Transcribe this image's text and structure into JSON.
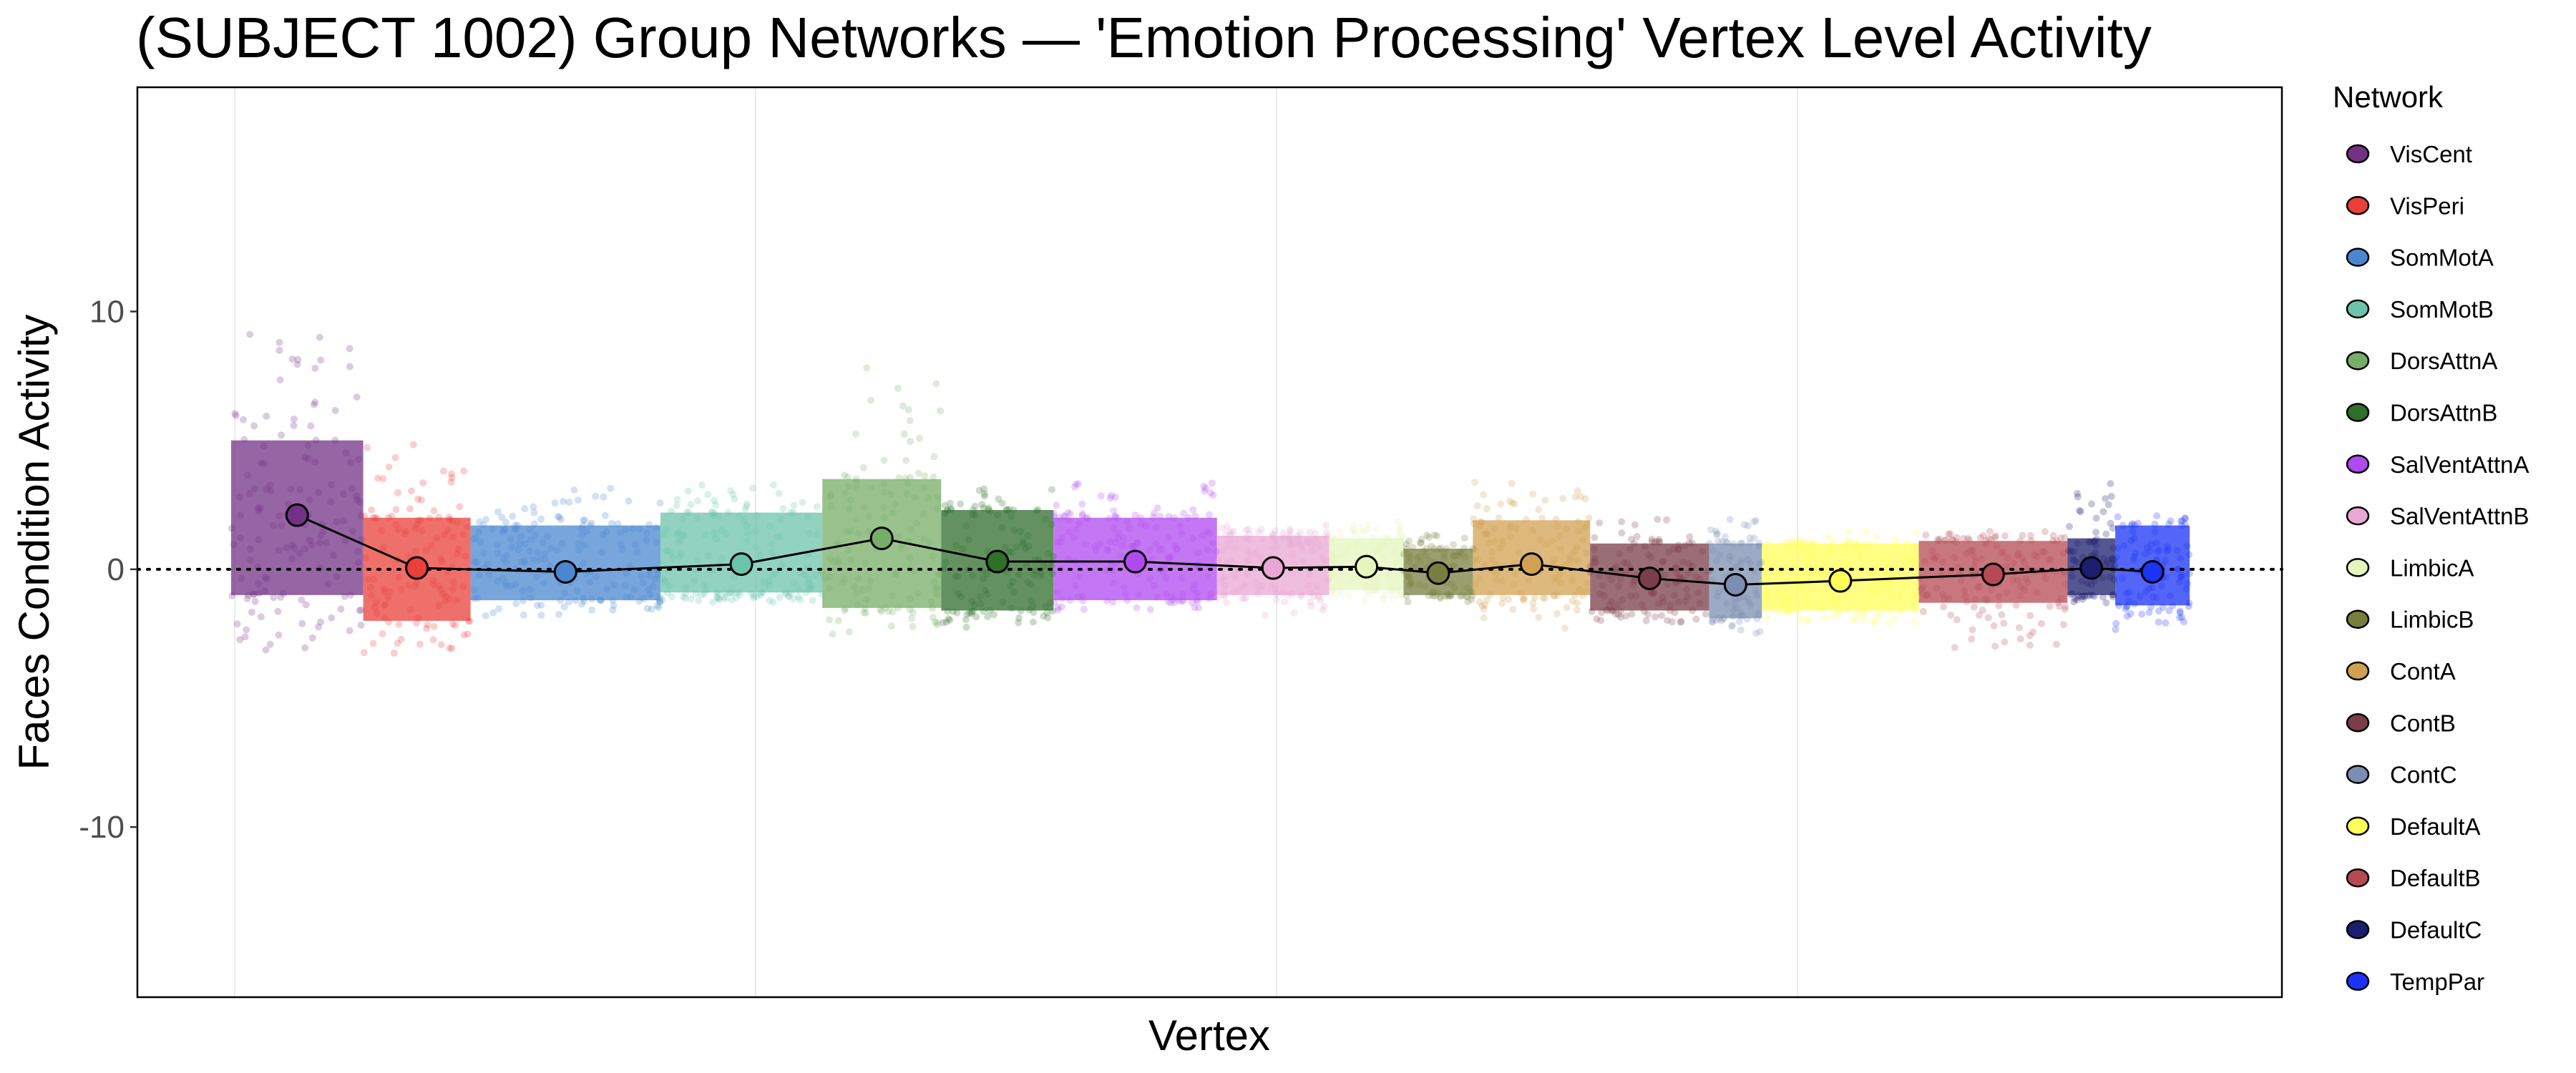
{
  "chart_data": {
    "type": "scatter",
    "title": "(SUBJECT 1002) Group Networks — 'Emotion Processing' Vertex Level Activity",
    "xlabel": "Vertex",
    "ylabel": "Faces Condition Activity",
    "ylim": [
      -16.6,
      18.7
    ],
    "yticks": [
      {
        "value": 10,
        "label": "10"
      },
      {
        "value": 0,
        "label": "0"
      },
      {
        "value": -10,
        "label": "-10"
      }
    ],
    "reference_line": {
      "y": 0,
      "style": "dotted"
    },
    "grid": "vertical-major",
    "legend": {
      "title": "Network",
      "position": "right"
    },
    "networks": [
      {
        "name": "VisCent",
        "color": "#733185",
        "vertices": 4000,
        "mean": 2.1,
        "core": [
          -1.0,
          5.0
        ],
        "range": [
          -3.4,
          9.3
        ]
      },
      {
        "name": "VisPeri",
        "color": "#E9403A",
        "vertices": 3250,
        "mean": 0.05,
        "core": [
          -2.0,
          2.0
        ],
        "range": [
          -3.3,
          5.0
        ]
      },
      {
        "name": "SomMotA",
        "color": "#4A87D0",
        "vertices": 5750,
        "mean": -0.1,
        "core": [
          -1.2,
          1.7
        ],
        "range": [
          -1.8,
          3.3
        ]
      },
      {
        "name": "SomMotB",
        "color": "#6CC3AB",
        "vertices": 4900,
        "mean": 0.2,
        "core": [
          -0.9,
          2.2
        ],
        "range": [
          -1.3,
          3.3
        ]
      },
      {
        "name": "DorsAttnA",
        "color": "#77AE67",
        "vertices": 3600,
        "mean": 1.2,
        "core": [
          -1.5,
          3.5
        ],
        "range": [
          -2.6,
          8.3
        ]
      },
      {
        "name": "DorsAttnB",
        "color": "#2F6E2B",
        "vertices": 3400,
        "mean": 0.3,
        "core": [
          -1.6,
          2.3
        ],
        "range": [
          -2.3,
          3.2
        ]
      },
      {
        "name": "SalVentAttnA",
        "color": "#B04AF0",
        "vertices": 4950,
        "mean": 0.3,
        "core": [
          -1.2,
          2.0
        ],
        "range": [
          -1.6,
          3.4
        ]
      },
      {
        "name": "SalVentAttnB",
        "color": "#E9A7D3",
        "vertices": 3400,
        "mean": 0.05,
        "core": [
          -1.0,
          1.3
        ],
        "range": [
          -1.8,
          1.8
        ]
      },
      {
        "name": "LimbicA",
        "color": "#E6F5BE",
        "vertices": 2250,
        "mean": 0.1,
        "core": [
          -0.8,
          1.2
        ],
        "range": [
          -1.5,
          1.9
        ]
      },
      {
        "name": "LimbicB",
        "color": "#777F3E",
        "vertices": 2100,
        "mean": -0.15,
        "core": [
          -1.0,
          0.8
        ],
        "range": [
          -1.3,
          1.4
        ]
      },
      {
        "name": "ContA",
        "color": "#D1A152",
        "vertices": 3550,
        "mean": 0.2,
        "core": [
          -1.0,
          1.9
        ],
        "range": [
          -2.3,
          3.6
        ]
      },
      {
        "name": "ContB",
        "color": "#7A3D4A",
        "vertices": 3600,
        "mean": -0.35,
        "core": [
          -1.6,
          1.0
        ],
        "range": [
          -2.1,
          2.0
        ]
      },
      {
        "name": "ContC",
        "color": "#7B8DB0",
        "vertices": 1600,
        "mean": -0.6,
        "core": [
          -1.9,
          1.0
        ],
        "range": [
          -2.5,
          2.4
        ]
      },
      {
        "name": "DefaultA",
        "color": "#FFFF5A",
        "vertices": 4750,
        "mean": -0.45,
        "core": [
          -1.6,
          1.0
        ],
        "range": [
          -2.1,
          1.5
        ]
      },
      {
        "name": "DefaultB",
        "color": "#B54A54",
        "vertices": 4500,
        "mean": -0.2,
        "core": [
          -1.3,
          1.1
        ],
        "range": [
          -3.1,
          1.5
        ]
      },
      {
        "name": "DefaultC",
        "color": "#1B1D6E",
        "vertices": 1450,
        "mean": 0.05,
        "core": [
          -1.0,
          1.2
        ],
        "range": [
          -1.3,
          3.4
        ]
      },
      {
        "name": "TempPar",
        "color": "#1A33F5",
        "vertices": 2250,
        "mean": -0.1,
        "core": [
          -1.4,
          1.7
        ],
        "range": [
          -2.5,
          2.1
        ]
      }
    ]
  }
}
